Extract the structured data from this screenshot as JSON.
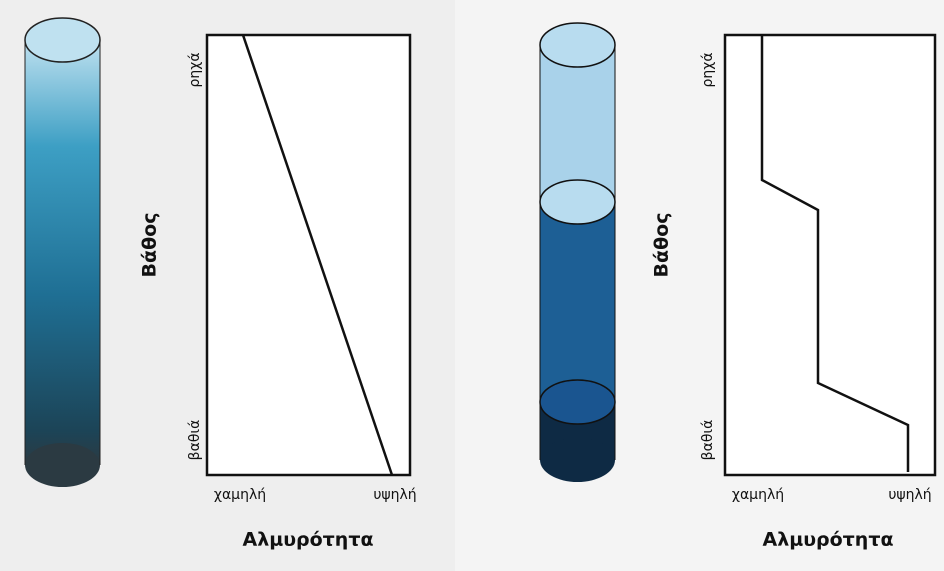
{
  "panels": [
    {
      "y_axis_title": "Βάθος",
      "y_top": "ρηχά",
      "y_bottom": "βαθιά",
      "x_left": "χαμηλή",
      "x_right": "υψηλή",
      "x_axis_title": "Αλμυρότητα"
    },
    {
      "y_axis_title": "Βάθος",
      "y_top": "ρηχά",
      "y_bottom": "βαθιά",
      "x_left": "χαμηλή",
      "x_right": "υψηλή",
      "x_axis_title": "Αλμυρότητα"
    }
  ]
}
